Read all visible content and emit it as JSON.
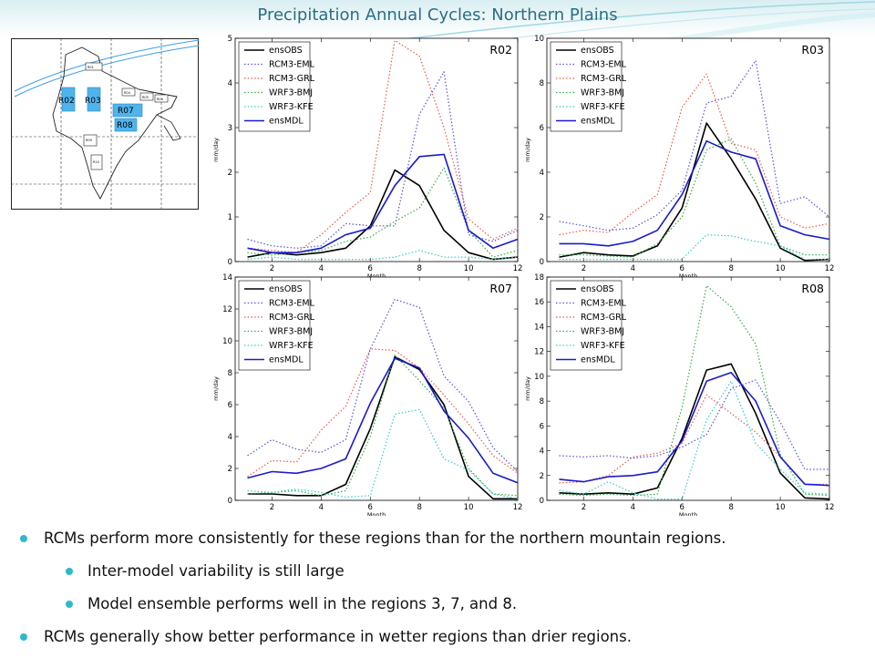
{
  "slide": {
    "title": "Precipitation Annual Cycles: Northern  Plains",
    "bullets": [
      {
        "level": 1,
        "text": "RCMs perform more consistently for these regions than for the northern mountain regions."
      },
      {
        "level": 2,
        "text": "Inter-model variability is still large"
      },
      {
        "level": 2,
        "text": "Model ensemble performs well in the regions 3, 7, and 8."
      },
      {
        "level": 1,
        "text": "RCMs generally show better performance in wetter regions than drier regions."
      }
    ],
    "accent_color": "#2fb8c8",
    "title_color": "#2a6e86"
  },
  "map": {
    "highlighted_regions": [
      "R02",
      "R03",
      "R07",
      "R08"
    ],
    "highlight_color": "#4fb4ec",
    "other_regions": [
      "R01",
      "R04",
      "R05",
      "R06",
      "R09",
      "R10"
    ]
  },
  "chart_data": [
    {
      "type": "line",
      "panel": "R02",
      "xlabel": "Month",
      "ylabel": "mm/day",
      "xlim": [
        0.5,
        12
      ],
      "ylim": [
        0,
        5
      ],
      "xticks": [
        2,
        4,
        6,
        8,
        10,
        12
      ],
      "yticks": [
        0,
        1,
        2,
        3,
        4,
        5
      ],
      "legend": "top-left",
      "x": [
        1,
        2,
        3,
        4,
        5,
        6,
        7,
        8,
        9,
        10,
        11,
        12
      ],
      "series": [
        {
          "name": "ensOBS",
          "color": "#000000",
          "style": "solid",
          "values": [
            0.1,
            0.2,
            0.15,
            0.2,
            0.3,
            0.8,
            2.05,
            1.7,
            0.7,
            0.2,
            0.05,
            0.1
          ]
        },
        {
          "name": "RCM3-EML",
          "color": "#5555dd",
          "style": "dotted",
          "values": [
            0.5,
            0.35,
            0.3,
            0.35,
            0.85,
            0.8,
            0.8,
            3.3,
            4.25,
            0.6,
            0.45,
            0.7
          ]
        },
        {
          "name": "RCM3-GRL",
          "color": "#e85a4a",
          "style": "dotted",
          "values": [
            0.3,
            0.25,
            0.2,
            0.6,
            1.1,
            1.55,
            4.95,
            4.6,
            3.0,
            0.95,
            0.5,
            0.75
          ]
        },
        {
          "name": "WRF3-BMJ",
          "color": "#33aa44",
          "style": "dotted",
          "values": [
            0.2,
            0.15,
            0.2,
            0.25,
            0.45,
            0.55,
            0.9,
            1.2,
            2.1,
            0.7,
            0.1,
            0.25
          ]
        },
        {
          "name": "WRF3-KFE",
          "color": "#33cccc",
          "style": "dotted",
          "values": [
            0.05,
            0.1,
            0.05,
            0.05,
            0.05,
            0.05,
            0.1,
            0.25,
            0.1,
            0.1,
            0.05,
            0.1
          ]
        },
        {
          "name": "ensMDL",
          "color": "#1a1acc",
          "style": "solid",
          "values": [
            0.3,
            0.2,
            0.2,
            0.3,
            0.6,
            0.75,
            1.7,
            2.35,
            2.4,
            0.7,
            0.3,
            0.5
          ]
        }
      ]
    },
    {
      "type": "line",
      "panel": "R03",
      "xlabel": "Month",
      "ylabel": "mm/day",
      "xlim": [
        0.5,
        12
      ],
      "ylim": [
        0,
        10
      ],
      "xticks": [
        2,
        4,
        6,
        8,
        10,
        12
      ],
      "yticks": [
        0,
        2,
        4,
        6,
        8,
        10
      ],
      "legend": "top-left",
      "x": [
        1,
        2,
        3,
        4,
        5,
        6,
        7,
        8,
        9,
        10,
        11,
        12
      ],
      "series": [
        {
          "name": "ensOBS",
          "color": "#000000",
          "style": "solid",
          "values": [
            0.2,
            0.4,
            0.3,
            0.25,
            0.7,
            2.4,
            6.2,
            4.6,
            2.8,
            0.6,
            0.05,
            0.1
          ]
        },
        {
          "name": "RCM3-EML",
          "color": "#5555dd",
          "style": "dotted",
          "values": [
            1.8,
            1.6,
            1.4,
            1.5,
            2.1,
            3.2,
            7.1,
            7.4,
            9.0,
            2.6,
            2.9,
            2.0
          ]
        },
        {
          "name": "RCM3-GRL",
          "color": "#e85a4a",
          "style": "dotted",
          "values": [
            1.2,
            1.4,
            1.3,
            2.2,
            3.0,
            6.9,
            8.4,
            5.3,
            5.0,
            2.0,
            1.5,
            1.7
          ]
        },
        {
          "name": "WRF3-BMJ",
          "color": "#33aa44",
          "style": "dotted",
          "values": [
            0.3,
            0.3,
            0.25,
            0.2,
            0.8,
            2.0,
            5.0,
            5.5,
            3.5,
            0.7,
            0.3,
            0.3
          ]
        },
        {
          "name": "WRF3-KFE",
          "color": "#33cccc",
          "style": "dotted",
          "values": [
            0.1,
            0.1,
            0.1,
            0.1,
            0.1,
            0.1,
            1.2,
            1.15,
            0.9,
            0.7,
            0.1,
            0.1
          ]
        },
        {
          "name": "ensMDL",
          "color": "#1a1acc",
          "style": "solid",
          "values": [
            0.8,
            0.8,
            0.7,
            0.9,
            1.4,
            3.0,
            5.4,
            4.9,
            4.6,
            1.6,
            1.2,
            1.0
          ]
        }
      ]
    },
    {
      "type": "line",
      "panel": "R07",
      "xlabel": "Month",
      "ylabel": "mm/day",
      "xlim": [
        0.5,
        12
      ],
      "ylim": [
        0,
        14
      ],
      "xticks": [
        2,
        4,
        6,
        8,
        10,
        12
      ],
      "yticks": [
        0,
        2,
        4,
        6,
        8,
        10,
        12,
        14
      ],
      "legend": "top-left",
      "x": [
        1,
        2,
        3,
        4,
        5,
        6,
        7,
        8,
        9,
        10,
        11,
        12
      ],
      "series": [
        {
          "name": "ensOBS",
          "color": "#000000",
          "style": "solid",
          "values": [
            0.4,
            0.4,
            0.3,
            0.3,
            1.0,
            4.5,
            9.0,
            8.2,
            6.0,
            1.5,
            0.1,
            0.1
          ]
        },
        {
          "name": "RCM3-EML",
          "color": "#5555dd",
          "style": "dotted",
          "values": [
            2.8,
            3.8,
            3.2,
            3.0,
            3.8,
            9.5,
            12.6,
            12.1,
            7.8,
            6.2,
            3.3,
            1.8
          ]
        },
        {
          "name": "RCM3-GRL",
          "color": "#e85a4a",
          "style": "dotted",
          "values": [
            1.5,
            2.5,
            2.4,
            4.4,
            5.9,
            9.5,
            9.4,
            8.3,
            6.6,
            4.8,
            2.8,
            1.7
          ]
        },
        {
          "name": "WRF3-BMJ",
          "color": "#33aa44",
          "style": "dotted",
          "values": [
            0.4,
            0.5,
            0.6,
            0.3,
            0.6,
            4.0,
            9.1,
            7.5,
            5.8,
            2.0,
            0.4,
            0.3
          ]
        },
        {
          "name": "WRF3-KFE",
          "color": "#33cccc",
          "style": "dotted",
          "values": [
            0.6,
            0.5,
            0.7,
            0.5,
            0.2,
            0.3,
            5.4,
            5.7,
            2.6,
            1.9,
            0.4,
            0.1
          ]
        },
        {
          "name": "ensMDL",
          "color": "#1a1acc",
          "style": "solid",
          "values": [
            1.4,
            1.8,
            1.7,
            2.0,
            2.6,
            6.1,
            8.9,
            8.3,
            5.6,
            3.9,
            1.7,
            1.1
          ]
        }
      ]
    },
    {
      "type": "line",
      "panel": "R08",
      "xlabel": "Month",
      "ylabel": "mm/day",
      "xlim": [
        0.5,
        12
      ],
      "ylim": [
        0,
        18
      ],
      "xticks": [
        2,
        4,
        6,
        8,
        10,
        12
      ],
      "yticks": [
        0,
        2,
        4,
        6,
        8,
        10,
        12,
        14,
        16,
        18
      ],
      "legend": "top-left",
      "x": [
        1,
        2,
        3,
        4,
        5,
        6,
        7,
        8,
        9,
        10,
        11,
        12
      ],
      "series": [
        {
          "name": "ensOBS",
          "color": "#000000",
          "style": "solid",
          "values": [
            0.6,
            0.5,
            0.6,
            0.5,
            1.0,
            5.0,
            10.5,
            11.0,
            7.0,
            2.2,
            0.2,
            0.1
          ]
        },
        {
          "name": "RCM3-EML",
          "color": "#5555dd",
          "style": "dotted",
          "values": [
            3.6,
            3.5,
            3.6,
            3.4,
            3.6,
            4.3,
            5.3,
            9.0,
            9.7,
            6.3,
            2.5,
            2.5
          ]
        },
        {
          "name": "RCM3-GRL",
          "color": "#e85a4a",
          "style": "dotted",
          "values": [
            1.4,
            1.5,
            2.0,
            3.5,
            3.8,
            4.6,
            8.5,
            7.0,
            5.5,
            3.5,
            1.3,
            1.3
          ]
        },
        {
          "name": "WRF3-BMJ",
          "color": "#33aa44",
          "style": "dotted",
          "values": [
            0.5,
            0.4,
            0.5,
            0.4,
            0.5,
            7.5,
            17.3,
            15.6,
            12.6,
            3.7,
            0.5,
            0.4
          ]
        },
        {
          "name": "WRF3-KFE",
          "color": "#33cccc",
          "style": "dotted",
          "values": [
            0.8,
            0.5,
            1.5,
            0.6,
            0.1,
            0.1,
            6.5,
            9.6,
            4.6,
            2.5,
            0.6,
            0.5
          ]
        },
        {
          "name": "ensMDL",
          "color": "#1a1acc",
          "style": "solid",
          "values": [
            1.7,
            1.5,
            1.9,
            2.0,
            2.3,
            4.8,
            9.6,
            10.3,
            8.0,
            3.5,
            1.3,
            1.2
          ]
        }
      ]
    }
  ]
}
